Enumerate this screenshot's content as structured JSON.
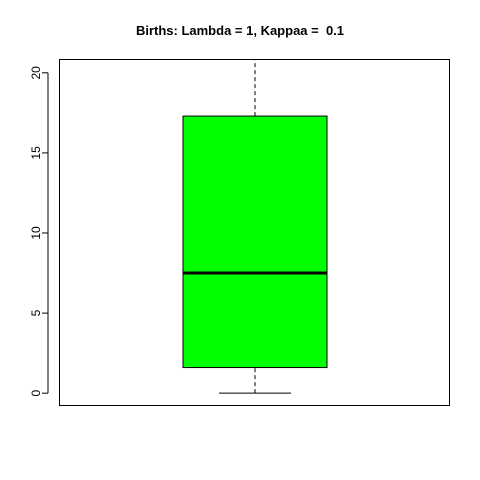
{
  "chart_data": {
    "type": "boxplot",
    "title": "Births: Lambda = 1, Kappaa =  0.1",
    "xlabel": "",
    "ylabel": "",
    "ylim": [
      -0.8,
      20.8
    ],
    "yticks": [
      "0",
      "5",
      "10",
      "15",
      "20"
    ],
    "grid": false,
    "legend": "none",
    "box": {
      "min": 0,
      "q1": 1.6,
      "median": 7.5,
      "q3": 17.3,
      "max": 20.8
    },
    "colors": {
      "fill": "#00ff00",
      "stroke": "#000000"
    }
  }
}
